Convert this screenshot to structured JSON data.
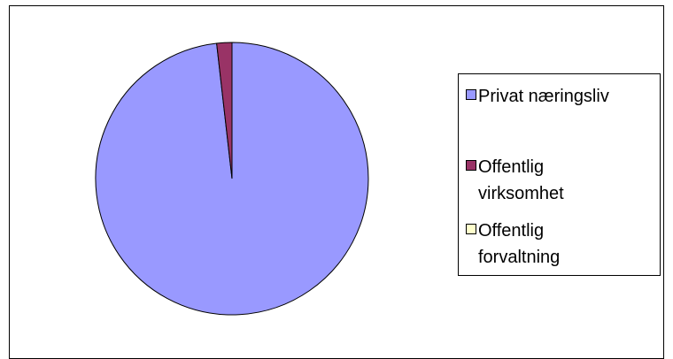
{
  "chart_data": {
    "type": "pie",
    "categories": [
      "Privat næringsliv",
      "Offentlig virksomhet",
      "Offentlig forvaltning"
    ],
    "values": [
      98.2,
      1.8,
      0.0
    ],
    "colors": [
      "#9999ff",
      "#993366",
      "#ffffcc"
    ],
    "legend_position": "right",
    "legend": [
      {
        "lines": [
          "Privat næringsliv"
        ]
      },
      {
        "lines": [
          "Offentlig",
          "virksomhet"
        ]
      },
      {
        "lines": [
          "Offentlig",
          "forvaltning"
        ]
      }
    ]
  }
}
